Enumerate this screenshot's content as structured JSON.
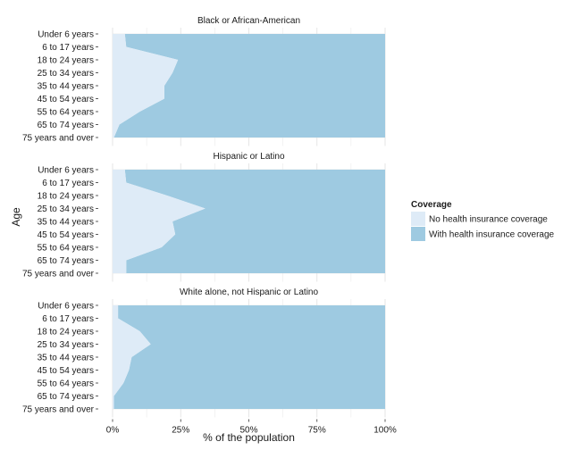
{
  "chart_data": {
    "type": "area",
    "orientation": "horizontal",
    "xlabel": "% of the population",
    "ylabel": "Age",
    "xlim": [
      0,
      100
    ],
    "xticks": [
      0,
      25,
      50,
      75,
      100
    ],
    "xtick_labels": [
      "0%",
      "25%",
      "50%",
      "75%",
      "100%"
    ],
    "categories": [
      "Under 6 years",
      "6 to 17 years",
      "18 to 24 years",
      "25 to 34 years",
      "35 to 44 years",
      "45 to 54 years",
      "55 to 64 years",
      "65 to 74 years",
      "75 years and over"
    ],
    "grid": true,
    "legend": {
      "title": "Coverage",
      "position": "right",
      "entries": [
        {
          "label": "No health insurance coverage",
          "color": "#deebf7"
        },
        {
          "label": "With health insurance coverage",
          "color": "#9ecae1"
        }
      ]
    },
    "colors": {
      "no_coverage": "#deebf7",
      "with_coverage": "#9ecae1",
      "grid": "#e0e0e0"
    },
    "panels": [
      {
        "title": "Black or African-American",
        "series": [
          {
            "name": "No health insurance coverage",
            "values": [
              4.5,
              5,
              24,
              22,
              19,
              19,
              10,
              2.5,
              0.5
            ]
          },
          {
            "name": "With health insurance coverage",
            "values": [
              95.5,
              95,
              76,
              78,
              81,
              81,
              90,
              97.5,
              99.5
            ]
          }
        ]
      },
      {
        "title": "Hispanic or Latino",
        "series": [
          {
            "name": "No health insurance coverage",
            "values": [
              4.5,
              5,
              20,
              34,
              22,
              23,
              18,
              5,
              5
            ]
          },
          {
            "name": "With health insurance coverage",
            "values": [
              95.5,
              95,
              80,
              66,
              78,
              77,
              82,
              95,
              95
            ]
          }
        ]
      },
      {
        "title": "White alone, not Hispanic or Latino",
        "series": [
          {
            "name": "No health insurance coverage",
            "values": [
              2,
              2,
              10,
              14,
              7,
              6,
              4,
              0.5,
              0.5
            ]
          },
          {
            "name": "With health insurance coverage",
            "values": [
              98,
              98,
              90,
              86,
              93,
              94,
              96,
              99.5,
              99.5
            ]
          }
        ]
      }
    ]
  }
}
